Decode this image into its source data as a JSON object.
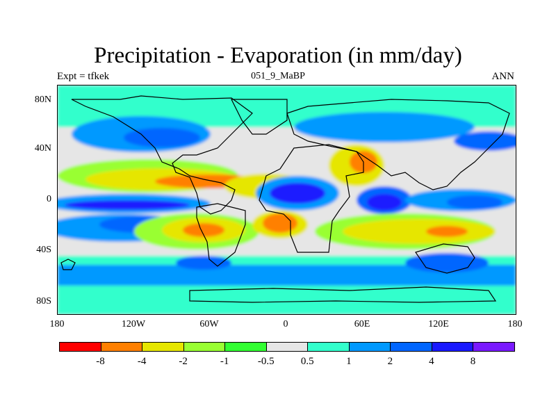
{
  "title": "Precipitation - Evaporation (in mm/day)",
  "subtitle_left": "Expt = tfkek",
  "subtitle_center": "051_9_MaBP",
  "subtitle_right": "ANN",
  "y_ticks": [
    "80N",
    "40N",
    "0",
    "40S",
    "80S"
  ],
  "x_ticks": [
    "180",
    "120W",
    "60W",
    "0",
    "60E",
    "120E",
    "180"
  ],
  "colorbar": {
    "colors": [
      "#ff0000",
      "#ff8000",
      "#e6e600",
      "#99ff33",
      "#33ff33",
      "#e6e6e6",
      "#33ffcc",
      "#0099ff",
      "#0066ff",
      "#1a1aff",
      "#7a1aff"
    ],
    "labels": [
      "-8",
      "-4",
      "-2",
      "-1",
      "-0.5",
      "0.5",
      "1",
      "2",
      "4",
      "8"
    ]
  },
  "chart_data": {
    "type": "heatmap",
    "title": "Precipitation - Evaporation (in mm/day)",
    "x_range": [
      -180,
      180
    ],
    "y_range": [
      -90,
      90
    ],
    "xlabel": "",
    "ylabel": "",
    "levels": [
      -8,
      -4,
      -2,
      -1,
      -0.5,
      0.5,
      1,
      2,
      4,
      8
    ]
  }
}
